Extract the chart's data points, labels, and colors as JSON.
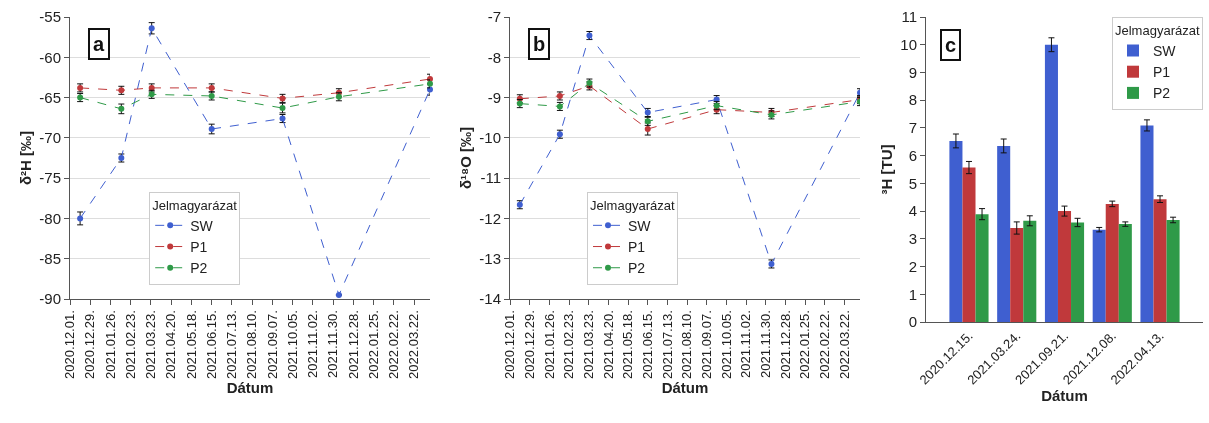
{
  "chart_data": [
    {
      "type": "line",
      "annotations": [
        "a"
      ],
      "xlabel": "Dátum",
      "ylabel": "δ²H [‰]",
      "legend_title": "Jelmagyarázat",
      "legend": "bottom left",
      "grid": "y",
      "marker": "circle",
      "line_style": "dashed",
      "x": [
        "2020-12-15",
        "2021-02-10",
        "2021-03-24",
        "2021-06-15",
        "2021-09-21",
        "2021-12-08",
        "2022-04-13"
      ],
      "xlim": [
        "2020-12-01",
        "2022-04-13"
      ],
      "xticks": [
        {
          "value": "2020-12-01",
          "label": "2020.12.01."
        },
        {
          "value": "2020-12-29",
          "label": "2020.12.29."
        },
        {
          "value": "2021-01-26",
          "label": "2021.01.26."
        },
        {
          "value": "2021-02-23",
          "label": "2021.02.23."
        },
        {
          "value": "2021-03-23",
          "label": "2021.03.23."
        },
        {
          "value": "2021-04-20",
          "label": "2021.04.20."
        },
        {
          "value": "2021-05-18",
          "label": "2021.05.18."
        },
        {
          "value": "2021-06-15",
          "label": "2021.06.15."
        },
        {
          "value": "2021-07-13",
          "label": "2021.07.13."
        },
        {
          "value": "2021-08-10",
          "label": "2021.08.10."
        },
        {
          "value": "2021-09-07",
          "label": "2021.09.07."
        },
        {
          "value": "2021-10-05",
          "label": "2021.10.05."
        },
        {
          "value": "2021-11-02",
          "label": "2021.11.02."
        },
        {
          "value": "2021-11-30",
          "label": "2021.11.30."
        },
        {
          "value": "2021-12-28",
          "label": "2021.12.28."
        },
        {
          "value": "2022-01-25",
          "label": "2022.01.25."
        },
        {
          "value": "2022-02-22",
          "label": "2022.02.22."
        },
        {
          "value": "2022-03-22",
          "label": "2022.03.22."
        }
      ],
      "ylim": [
        -90,
        -55
      ],
      "yticks": [
        -90,
        -85,
        -80,
        -75,
        -70,
        -65,
        -60,
        -55
      ],
      "series": [
        {
          "name": "SW",
          "color": "#3f5fd0",
          "values": [
            -80.0,
            -72.5,
            -56.4,
            -68.9,
            -67.6,
            -89.5,
            -64.0
          ],
          "errors": [
            0.8,
            0.5,
            0.7,
            0.6,
            0.5,
            null,
            0.7
          ]
        },
        {
          "name": "P1",
          "color": "#c0393b",
          "values": [
            -63.8,
            -64.1,
            -63.8,
            -63.8,
            -65.1,
            -64.4,
            -62.7
          ],
          "errors": [
            0.5,
            0.5,
            0.5,
            0.5,
            0.5,
            0.5,
            0.6
          ]
        },
        {
          "name": "P2",
          "color": "#2f9a48",
          "values": [
            -65.0,
            -66.4,
            -64.6,
            -64.8,
            -66.3,
            -64.9,
            -63.3
          ],
          "errors": [
            0.5,
            0.6,
            0.5,
            0.5,
            0.6,
            0.5,
            0.5
          ]
        }
      ]
    },
    {
      "type": "line",
      "annotations": [
        "b"
      ],
      "xlabel": "Dátum",
      "ylabel": "δ¹⁸O [‰]",
      "legend_title": "Jelmagyarázat",
      "legend": "bottom left",
      "grid": "y",
      "marker": "circle",
      "line_style": "dashed",
      "x": [
        "2020-12-15",
        "2021-02-10",
        "2021-03-24",
        "2021-06-15",
        "2021-09-21",
        "2021-12-08",
        "2022-04-13"
      ],
      "xlim": [
        "2020-12-01",
        "2022-04-13"
      ],
      "xticks": [
        {
          "value": "2020-12-01",
          "label": "2020.12.01."
        },
        {
          "value": "2020-12-29",
          "label": "2020.12.29."
        },
        {
          "value": "2021-01-26",
          "label": "2021.01.26."
        },
        {
          "value": "2021-02-23",
          "label": "2021.02.23."
        },
        {
          "value": "2021-03-23",
          "label": "2021.03.23."
        },
        {
          "value": "2021-04-20",
          "label": "2021.04.20."
        },
        {
          "value": "2021-05-18",
          "label": "2021.05.18."
        },
        {
          "value": "2021-06-15",
          "label": "2021.06.15."
        },
        {
          "value": "2021-07-13",
          "label": "2021.07.13."
        },
        {
          "value": "2021-08-10",
          "label": "2021.08.10."
        },
        {
          "value": "2021-09-07",
          "label": "2021.09.07."
        },
        {
          "value": "2021-10-05",
          "label": "2021.10.05."
        },
        {
          "value": "2021-11-02",
          "label": "2021.11.02."
        },
        {
          "value": "2021-11-30",
          "label": "2021.11.30."
        },
        {
          "value": "2021-12-28",
          "label": "2021.12.28."
        },
        {
          "value": "2022-01-25",
          "label": "2022.01.25."
        },
        {
          "value": "2022-02-22",
          "label": "2022.02.22."
        },
        {
          "value": "2022-03-22",
          "label": "2022.03.22."
        }
      ],
      "ylim": [
        -14,
        -7
      ],
      "yticks": [
        -14,
        -13,
        -12,
        -11,
        -10,
        -9,
        -8,
        -7
      ],
      "series": [
        {
          "name": "SW",
          "color": "#3f5fd0",
          "values": [
            -11.66,
            -9.91,
            -7.46,
            -9.37,
            -9.05,
            -13.13,
            -8.88
          ],
          "errors": [
            0.1,
            0.1,
            0.1,
            0.1,
            0.1,
            0.1,
            0.1
          ]
        },
        {
          "name": "P1",
          "color": "#c0393b",
          "values": [
            -9.03,
            -8.96,
            -8.71,
            -9.78,
            -9.3,
            -9.37,
            -9.05
          ],
          "errors": [
            0.1,
            0.1,
            0.1,
            0.15,
            0.1,
            0.1,
            0.1
          ]
        },
        {
          "name": "P2",
          "color": "#2f9a48",
          "values": [
            -9.15,
            -9.22,
            -8.64,
            -9.59,
            -9.2,
            -9.43,
            -9.1
          ],
          "errors": [
            0.1,
            0.1,
            0.1,
            0.1,
            0.1,
            0.1,
            0.1
          ]
        }
      ]
    },
    {
      "type": "bar",
      "annotations": [
        "c"
      ],
      "xlabel": "Dátum",
      "ylabel": "³H [TU]",
      "legend_title": "Jelmagyarázat",
      "legend": "top right",
      "grid": false,
      "categories": [
        "2020.12.15.",
        "2021.03.24.",
        "2021.09.21.",
        "2021.12.08.",
        "2022.04.13."
      ],
      "ylim": [
        0,
        11
      ],
      "yticks": [
        0,
        1,
        2,
        3,
        4,
        5,
        6,
        7,
        8,
        9,
        10,
        11
      ],
      "series": [
        {
          "name": "SW",
          "color": "#3f5fd0",
          "values": [
            6.53,
            6.35,
            10.0,
            3.33,
            7.09
          ],
          "errors": [
            0.25,
            0.25,
            0.25,
            0.08,
            0.2
          ]
        },
        {
          "name": "P1",
          "color": "#c0393b",
          "values": [
            5.57,
            3.39,
            4.0,
            4.26,
            4.43
          ],
          "errors": [
            0.22,
            0.22,
            0.18,
            0.1,
            0.12
          ]
        },
        {
          "name": "P2",
          "color": "#2f9a48",
          "values": [
            3.89,
            3.65,
            3.59,
            3.53,
            3.68
          ],
          "errors": [
            0.2,
            0.18,
            0.15,
            0.08,
            0.1
          ]
        }
      ]
    }
  ]
}
